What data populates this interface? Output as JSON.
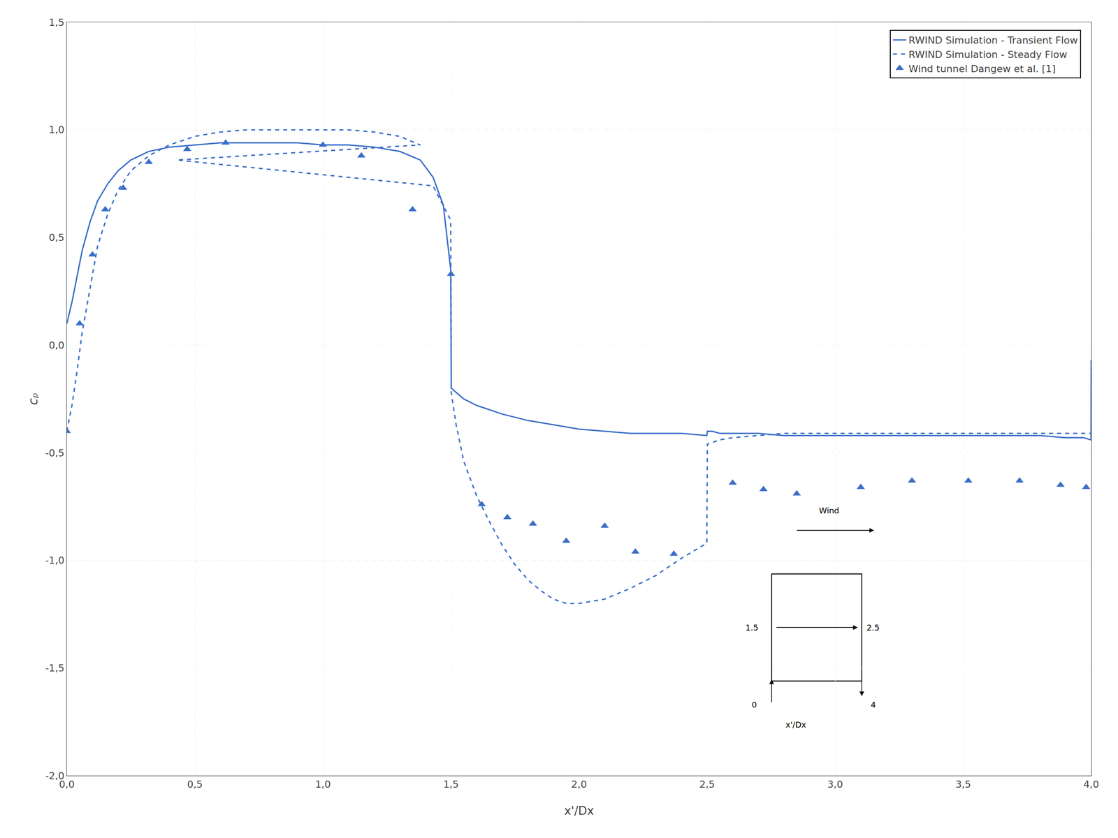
{
  "chart_data": {
    "type": "line",
    "xlabel": "x'/Dx",
    "ylabel": "cₚ",
    "xlim": [
      0.0,
      4.0
    ],
    "ylim": [
      -2.0,
      1.5
    ],
    "xticks": [
      {
        "value": 0.0,
        "label": "0,0"
      },
      {
        "value": 0.5,
        "label": "0,5"
      },
      {
        "value": 1.0,
        "label": "1,0"
      },
      {
        "value": 1.5,
        "label": "1,5"
      },
      {
        "value": 2.0,
        "label": "2,0"
      },
      {
        "value": 2.5,
        "label": "2,5"
      },
      {
        "value": 3.0,
        "label": "3,0"
      },
      {
        "value": 3.5,
        "label": "3,5"
      },
      {
        "value": 4.0,
        "label": "4,0"
      }
    ],
    "yticks": [
      {
        "value": -2.0,
        "label": "-2,0"
      },
      {
        "value": -1.5,
        "label": "-1,5"
      },
      {
        "value": -1.0,
        "label": "-1,0"
      },
      {
        "value": -0.5,
        "label": "-0,5"
      },
      {
        "value": 0.0,
        "label": "0,0"
      },
      {
        "value": 0.5,
        "label": "0,5"
      },
      {
        "value": 1.0,
        "label": "1,0"
      },
      {
        "value": 1.5,
        "label": "1,5"
      }
    ],
    "grid": true,
    "legend": "upper right",
    "series": [
      {
        "name": "RWIND Simulation - Transient Flow",
        "type": "line",
        "line_style": "solid",
        "color": "#3a6ec8",
        "x": [
          0.0,
          0.02,
          0.04,
          0.06,
          0.09,
          0.12,
          0.16,
          0.2,
          0.25,
          0.32,
          0.4,
          0.5,
          0.6,
          0.7,
          0.8,
          0.9,
          1.0,
          1.1,
          1.2,
          1.3,
          1.38,
          1.43,
          1.47,
          1.499,
          1.501,
          1.52,
          1.55,
          1.6,
          1.7,
          1.8,
          1.9,
          2.0,
          2.1,
          2.2,
          2.3,
          2.4,
          2.499,
          2.501,
          2.52,
          2.55,
          2.6,
          2.7,
          2.8,
          2.9,
          3.0,
          3.1,
          3.2,
          3.3,
          3.4,
          3.5,
          3.6,
          3.7,
          3.8,
          3.9,
          3.97,
          3.999,
          4.0
        ],
        "values": [
          0.1,
          0.2,
          0.32,
          0.44,
          0.57,
          0.67,
          0.75,
          0.81,
          0.86,
          0.9,
          0.92,
          0.93,
          0.94,
          0.94,
          0.94,
          0.94,
          0.93,
          0.93,
          0.92,
          0.9,
          0.86,
          0.78,
          0.65,
          0.35,
          -0.2,
          -0.22,
          -0.25,
          -0.28,
          -0.32,
          -0.35,
          -0.37,
          -0.39,
          -0.4,
          -0.41,
          -0.41,
          -0.41,
          -0.42,
          -0.4,
          -0.4,
          -0.41,
          -0.41,
          -0.41,
          -0.42,
          -0.42,
          -0.42,
          -0.42,
          -0.42,
          -0.42,
          -0.42,
          -0.42,
          -0.42,
          -0.42,
          -0.42,
          -0.43,
          -0.43,
          -0.44,
          -0.07
        ]
      },
      {
        "name": "RWIND Simulation - Steady Flow",
        "type": "line",
        "line_style": "dashed",
        "color": "#3a6ec8",
        "x": [
          0.0,
          0.02,
          0.04,
          0.06,
          0.09,
          0.12,
          0.16,
          0.2,
          0.25,
          0.32,
          0.4,
          0.5,
          0.6,
          0.7,
          0.8,
          0.9,
          1.0,
          1.1,
          1.2,
          1.3,
          1.38,
          0.43,
          1.43,
          1.499,
          1.501,
          1.52,
          1.55,
          1.6,
          1.65,
          1.7,
          1.75,
          1.8,
          1.85,
          1.9,
          1.95,
          2.0,
          2.1,
          2.2,
          2.3,
          2.4,
          2.499,
          2.501,
          2.55,
          2.6,
          2.7,
          2.8,
          2.9,
          3.0,
          3.1,
          3.2,
          3.3,
          3.4,
          3.5,
          3.6,
          3.7,
          3.8,
          3.9,
          3.97,
          3.999,
          4.0
        ],
        "values": [
          -0.4,
          -0.28,
          -0.12,
          0.06,
          0.26,
          0.46,
          0.61,
          0.72,
          0.81,
          0.88,
          0.93,
          0.97,
          0.99,
          1.0,
          1.0,
          1.0,
          1.0,
          1.0,
          0.99,
          0.97,
          0.93,
          0.86,
          0.74,
          0.58,
          -0.22,
          -0.37,
          -0.54,
          -0.7,
          -0.82,
          -0.93,
          -1.02,
          -1.09,
          -1.14,
          -1.18,
          -1.2,
          -1.2,
          -1.18,
          -1.13,
          -1.07,
          -0.99,
          -0.92,
          -0.46,
          -0.44,
          -0.43,
          -0.42,
          -0.41,
          -0.41,
          -0.41,
          -0.41,
          -0.41,
          -0.41,
          -0.41,
          -0.41,
          -0.41,
          -0.41,
          -0.41,
          -0.41,
          -0.41,
          -0.41,
          -0.07
        ]
      },
      {
        "name": "Wind tunnel Dangew et al. [1]",
        "type": "scatter",
        "marker": "triangle-up",
        "color": "#3a6ec8",
        "x": [
          0.0,
          0.05,
          0.1,
          0.15,
          0.22,
          0.32,
          0.47,
          0.62,
          1.0,
          1.15,
          1.35,
          1.5,
          1.62,
          1.72,
          1.82,
          1.95,
          2.1,
          2.22,
          2.37,
          2.6,
          2.72,
          2.85,
          3.1,
          3.3,
          3.52,
          3.72,
          3.88,
          3.98
        ],
        "values": [
          -0.4,
          0.1,
          0.42,
          0.63,
          0.73,
          0.85,
          0.91,
          0.94,
          0.93,
          0.88,
          0.63,
          0.33,
          -0.74,
          -0.8,
          -0.83,
          -0.91,
          -0.84,
          -0.96,
          -0.97,
          -0.64,
          -0.67,
          -0.69,
          -0.66,
          -0.63,
          -0.63,
          -0.63,
          -0.65,
          -0.66
        ]
      }
    ],
    "annotations": [
      "Wind",
      "1.5",
      "2.5",
      "0",
      "4",
      "x'/Dx"
    ]
  }
}
